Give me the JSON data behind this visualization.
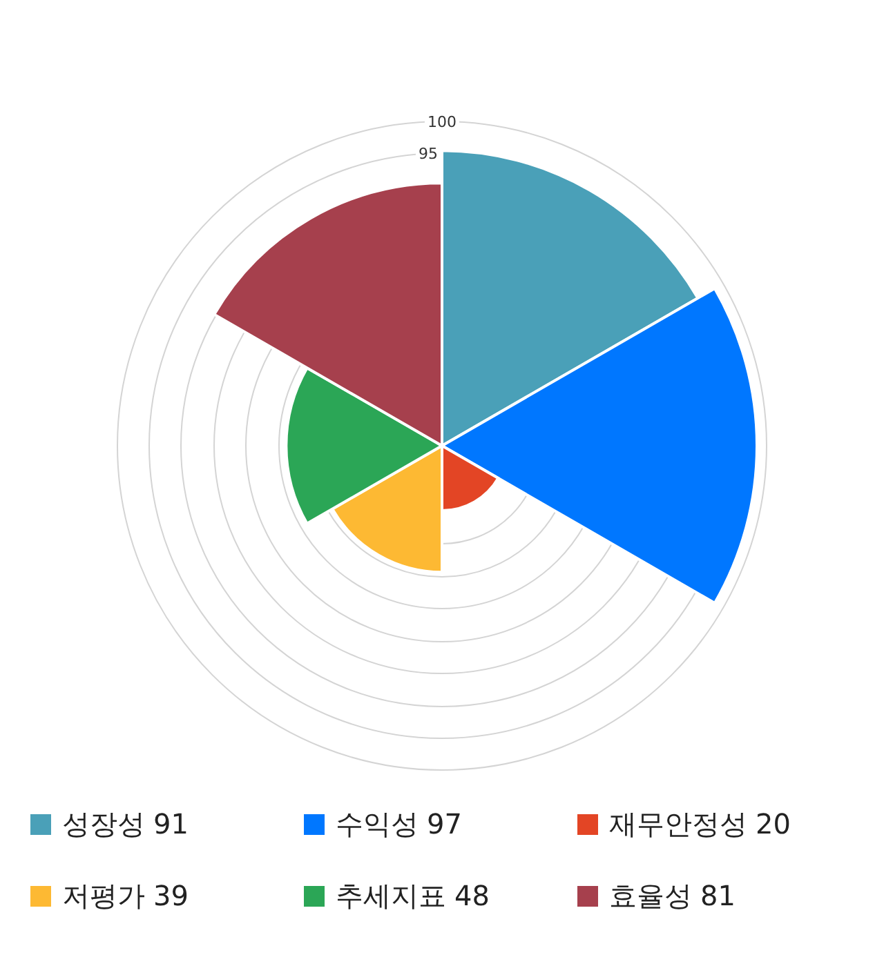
{
  "chart_data": {
    "type": "other",
    "categories": [
      "성장성",
      "수익성",
      "재무안정성",
      "저평가",
      "추세지표",
      "효율성"
    ],
    "values": [
      91,
      97,
      20,
      39,
      48,
      81
    ],
    "colors": [
      "#4aa0b8",
      "#0077ff",
      "#e34525",
      "#fdb933",
      "#2ba656",
      "#a6404d"
    ],
    "annotations": [
      "100",
      "95"
    ],
    "data_labels": true
  }
}
